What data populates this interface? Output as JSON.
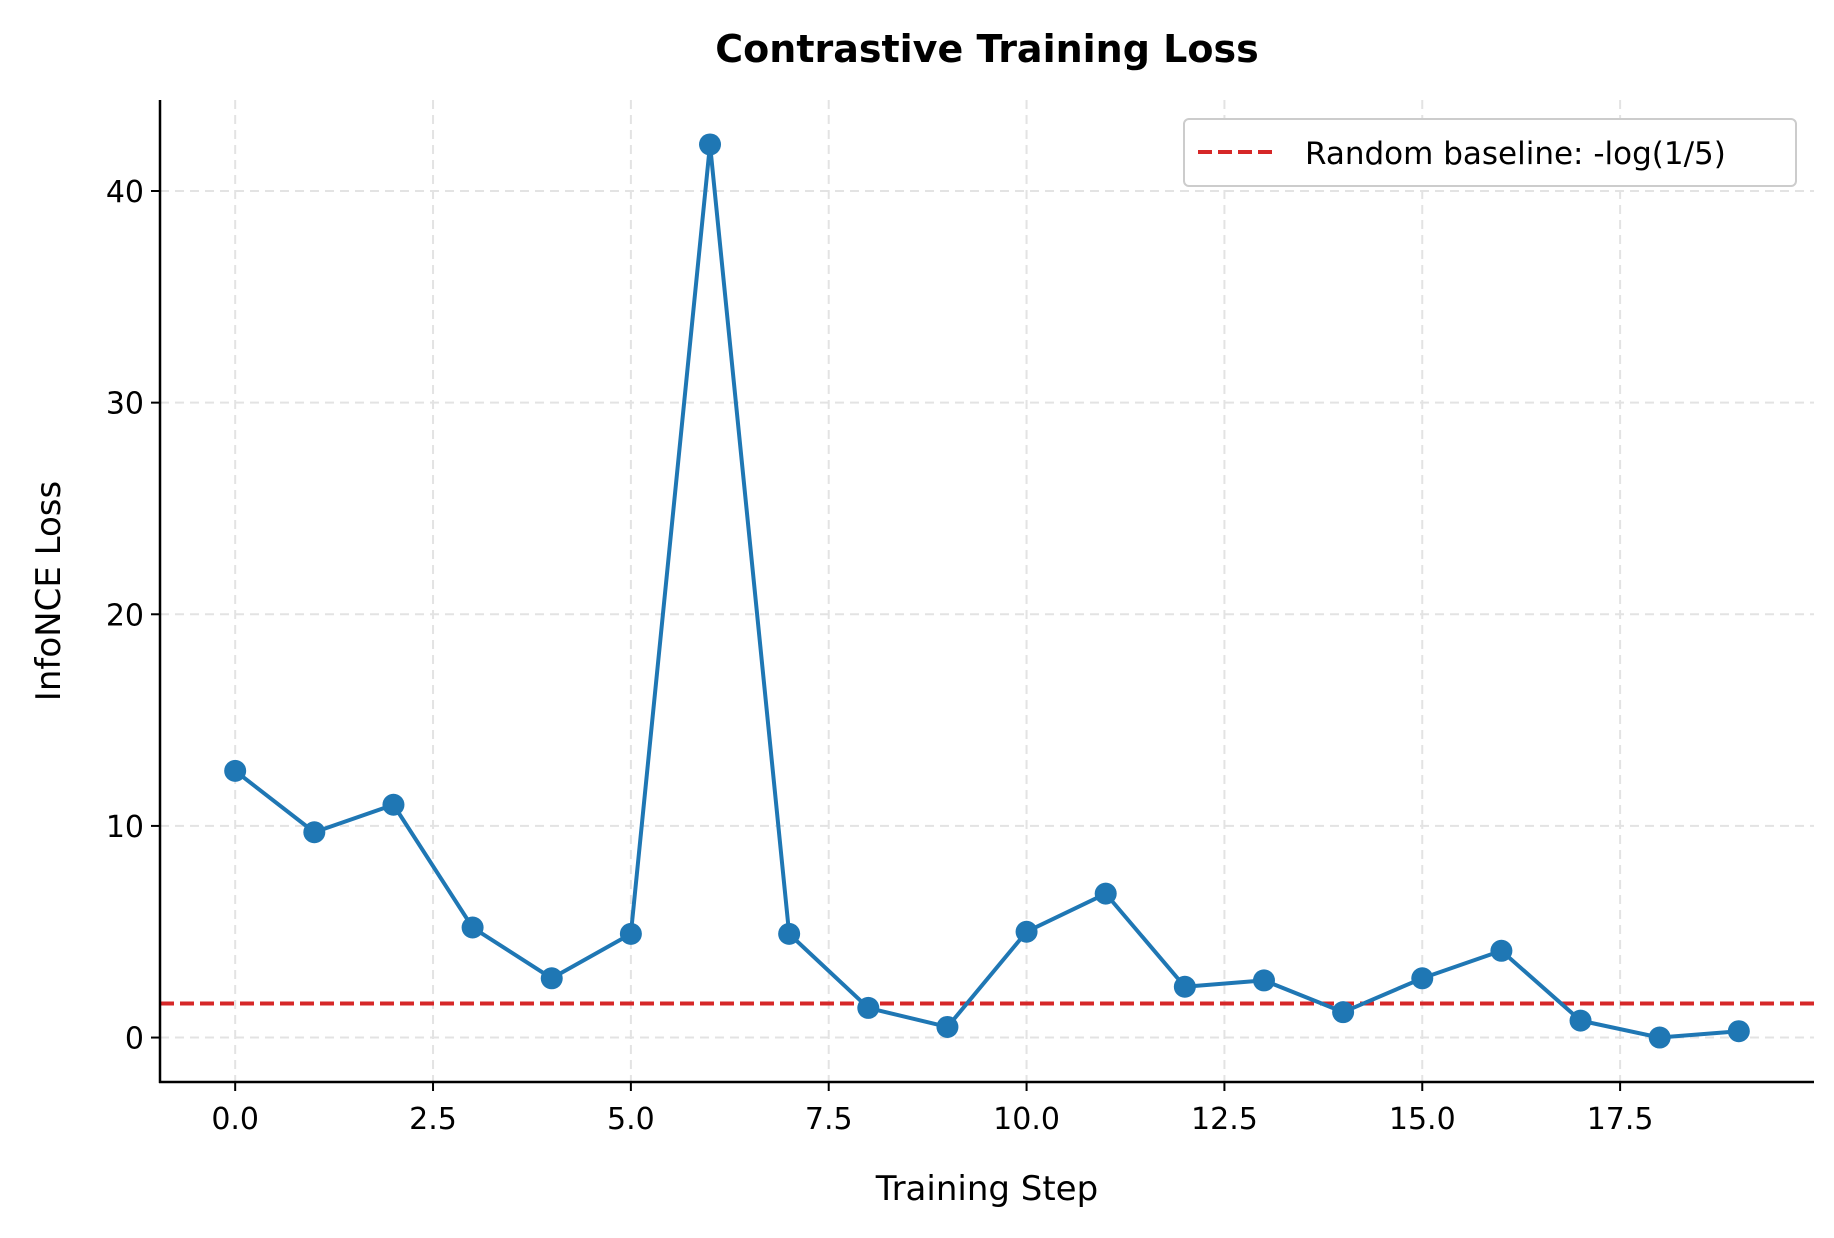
{
  "chart_data": {
    "type": "line",
    "title": "Contrastive Training Loss",
    "xlabel": "Training Step",
    "ylabel": "InfoNCE Loss",
    "xlim": [
      -0.95,
      19.95
    ],
    "ylim": [
      -2.1,
      44.3
    ],
    "x_ticks": [
      0,
      2.5,
      5,
      7.5,
      10,
      12.5,
      15,
      17.5
    ],
    "x_tick_labels": [
      "0.0",
      "2.5",
      "5.0",
      "7.5",
      "10.0",
      "12.5",
      "15.0",
      "17.5"
    ],
    "y_ticks": [
      0,
      10,
      20,
      30,
      40
    ],
    "y_tick_labels": [
      "0",
      "10",
      "20",
      "30",
      "40"
    ],
    "grid": true,
    "legend_position": "top-right",
    "series": [
      {
        "x": [
          0,
          1,
          2,
          3,
          4,
          5,
          6,
          7,
          8,
          9,
          10,
          11,
          12,
          13,
          14,
          15,
          16,
          17,
          18,
          19
        ],
        "y": [
          12.6,
          9.7,
          11.0,
          5.2,
          2.8,
          4.9,
          42.2,
          4.9,
          1.4,
          0.5,
          5.0,
          6.8,
          2.4,
          2.7,
          1.2,
          2.8,
          4.1,
          0.8,
          0.0,
          0.3
        ],
        "color": "#1f77b4",
        "marker": "circle"
      }
    ],
    "reference_lines": [
      {
        "name": "Random baseline: -log(1/5)",
        "y": 1.609,
        "color": "#d62728",
        "style": "dashed"
      }
    ]
  }
}
